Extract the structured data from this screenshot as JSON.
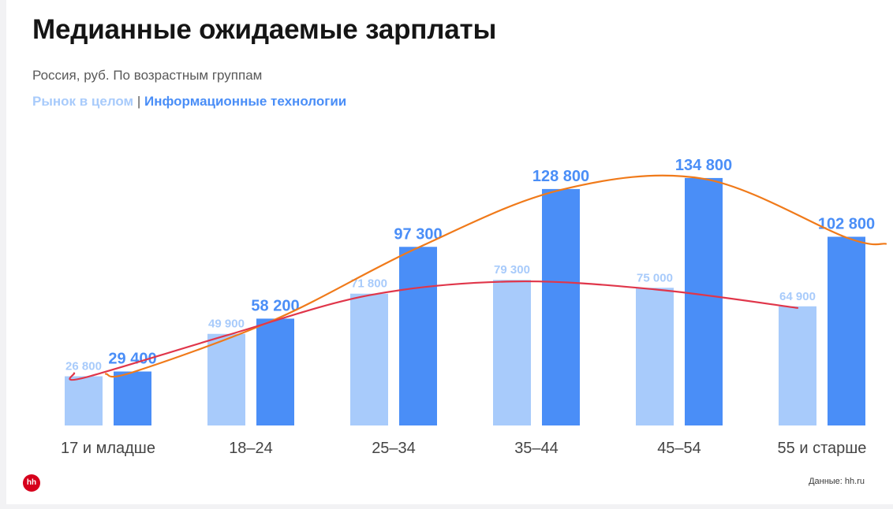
{
  "title": "Медианные ожидаемые зарплаты",
  "subtitle": "Россия, руб. По возрастным группам",
  "legend": {
    "market": "Рынок в целом",
    "separator": "|",
    "it": "Информационные технологии"
  },
  "source": "Данные: hh.ru",
  "logo_text": "hh",
  "colors": {
    "market_bar": "#a8cbfb",
    "it_bar": "#4a8ef7",
    "market_label": "#a8cbfb",
    "it_label": "#4a8ef7",
    "trend_market": "#e0364a",
    "trend_it": "#f07a1a",
    "axis_label": "#444444"
  },
  "chart_data": {
    "type": "bar",
    "categories": [
      "17 и младше",
      "18–24",
      "25–34",
      "35–44",
      "45–54",
      "55 и старше"
    ],
    "series": [
      {
        "name": "Рынок в целом",
        "values": [
          26800,
          49900,
          71800,
          79300,
          75000,
          64900
        ],
        "labels": [
          "26 800",
          "49 900",
          "71 800",
          "79 300",
          "75 000",
          "64 900"
        ]
      },
      {
        "name": "Информационные технологии",
        "values": [
          29400,
          58200,
          97300,
          128800,
          134800,
          102800
        ],
        "labels": [
          "29 400",
          "58 200",
          "97 300",
          "128 800",
          "134 800",
          "102 800"
        ]
      }
    ],
    "ylim": [
      0,
      150000
    ],
    "grid": false,
    "legend_position": "top-left",
    "annotations": [
      "hand-drawn red trend line over market bars",
      "hand-drawn orange trend line over IT bars"
    ]
  }
}
